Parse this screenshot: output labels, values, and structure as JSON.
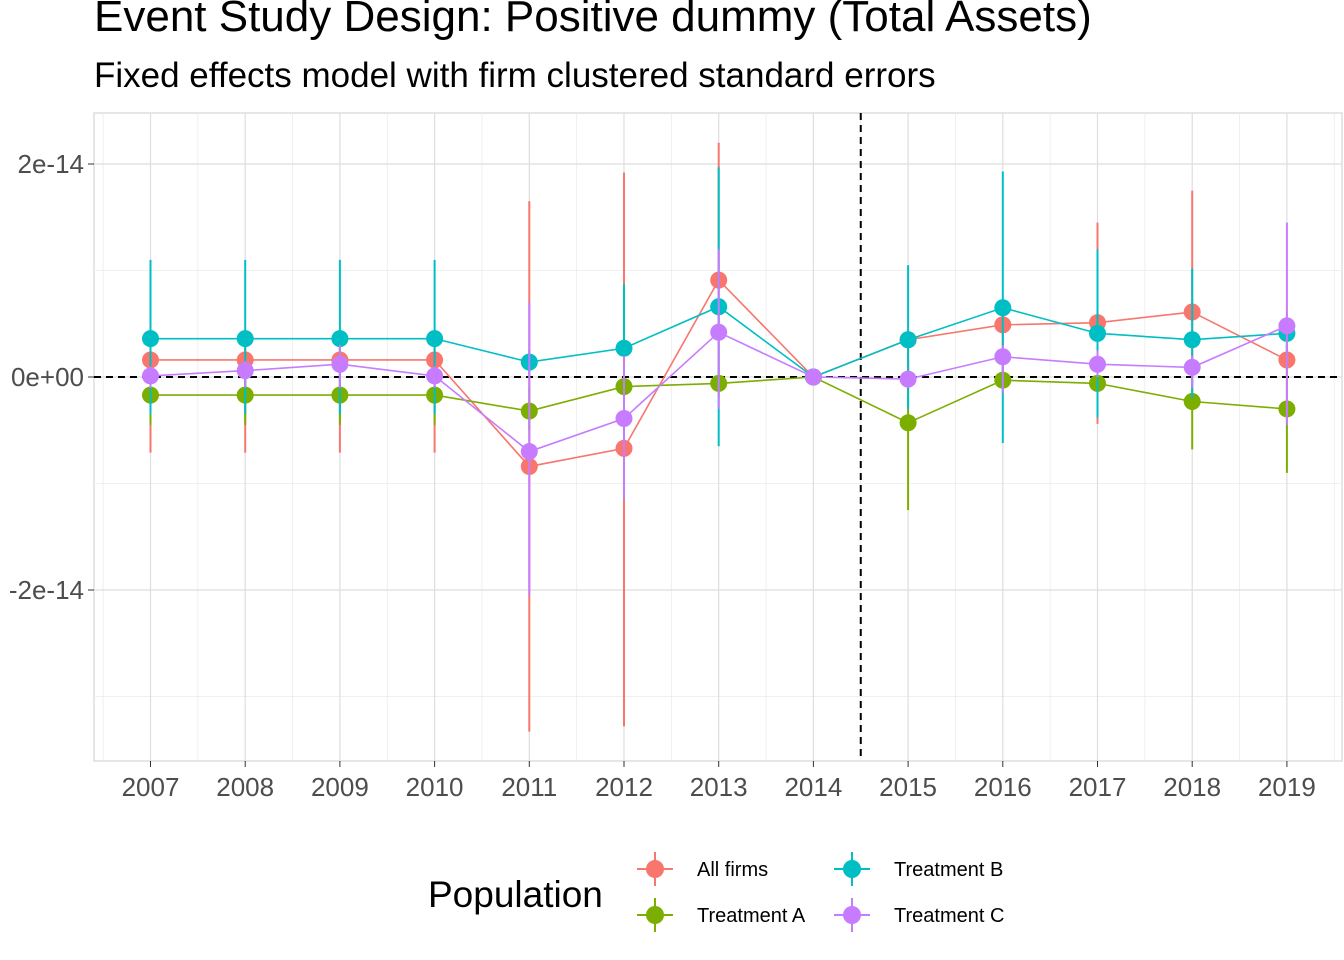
{
  "title": "Event Study Design: Positive dummy (Total Assets)",
  "subtitle": "Fixed effects model with firm clustered standard errors",
  "chart_data": {
    "type": "line",
    "title": "Event Study Design: Positive dummy (Total Assets)",
    "subtitle": "Fixed effects model with firm clustered standard errors",
    "x": [
      2007,
      2008,
      2009,
      2010,
      2011,
      2012,
      2013,
      2014,
      2015,
      2016,
      2017,
      2018,
      2019
    ],
    "x_tick_labels": [
      "2007",
      "2008",
      "2009",
      "2010",
      "2011",
      "2012",
      "2013",
      "2014",
      "2015",
      "2016",
      "2017",
      "2018",
      "2019"
    ],
    "ylim": [
      -3.6e-14,
      2.45e-14
    ],
    "y_ticks": [
      2e-14,
      0,
      -2e-14
    ],
    "y_tick_labels": [
      "2e-14",
      "0e+00",
      "-2e-14"
    ],
    "reference_lines": {
      "horizontal_y": 0,
      "vertical_x": 2014.5,
      "style": "dashed"
    },
    "grid": true,
    "legend": {
      "title": "Population",
      "position": "bottom"
    },
    "series": [
      {
        "name": "All firms",
        "color": "#F8766D",
        "values": [
          1.6e-15,
          1.6e-15,
          1.6e-15,
          1.6e-15,
          -8.4e-15,
          -6.7e-15,
          9.1e-15,
          0,
          3.5e-15,
          4.9e-15,
          5.1e-15,
          6.1e-15,
          1.6e-15
        ],
        "lower": [
          -7.1e-15,
          -7.1e-15,
          -7.1e-15,
          -7.1e-15,
          -3.33e-14,
          -3.28e-14,
          0,
          0,
          0,
          0,
          -4.4e-15,
          0,
          0
        ],
        "upper": [
          3.5e-15,
          3.5e-15,
          3.5e-15,
          3.5e-15,
          1.65e-14,
          1.92e-14,
          2.2e-14,
          0,
          4e-15,
          6e-15,
          1.45e-14,
          1.75e-14,
          3e-15
        ]
      },
      {
        "name": "Treatment A",
        "color": "#7CAE00",
        "values": [
          -1.7e-15,
          -1.7e-15,
          -1.7e-15,
          -1.7e-15,
          -3.2e-15,
          -9e-16,
          -6e-16,
          0,
          -4.3e-15,
          -3e-16,
          -6e-16,
          -2.3e-15,
          -3e-15
        ],
        "lower": [
          -4.5e-15,
          -4.5e-15,
          -4.5e-15,
          -4.5e-15,
          -5e-15,
          -3e-15,
          -2e-15,
          0,
          -1.25e-14,
          -1.5e-15,
          -1.5e-15,
          -6.8e-15,
          -9e-15
        ],
        "upper": [
          0.0,
          0.0,
          0.0,
          0.0,
          -1e-15,
          1e-15,
          1e-15,
          0,
          1.5e-15,
          1e-15,
          5e-16,
          2e-15,
          3e-15
        ]
      },
      {
        "name": "Treatment B",
        "color": "#00BFC4",
        "values": [
          3.6e-15,
          3.6e-15,
          3.6e-15,
          3.6e-15,
          1.4e-15,
          2.7e-15,
          6.6e-15,
          0,
          3.5e-15,
          6.5e-15,
          4.1e-15,
          3.5e-15,
          4.1e-15
        ],
        "lower": [
          -3.5e-15,
          -3.5e-15,
          -3.5e-15,
          -3.5e-15,
          0.0,
          0.0,
          -6.5e-15,
          0,
          -3e-15,
          -6.2e-15,
          -3.8e-15,
          -2e-15,
          2e-15
        ],
        "upper": [
          1.1e-14,
          1.1e-14,
          1.1e-14,
          1.1e-14,
          2.5e-15,
          8.7e-15,
          1.97e-14,
          0,
          1.05e-14,
          1.93e-14,
          1.2e-14,
          1.02e-14,
          6e-15
        ]
      },
      {
        "name": "Treatment C",
        "color": "#C77CFF",
        "values": [
          1e-16,
          6e-16,
          1.2e-15,
          1e-16,
          -7e-15,
          -3.9e-15,
          4.2e-15,
          0,
          -2e-16,
          1.9e-15,
          1.2e-15,
          9e-16,
          4.8e-15
        ],
        "lower": [
          -1e-15,
          -1e-15,
          -1e-15,
          -1e-15,
          -2.05e-14,
          -1.15e-14,
          -3e-15,
          0,
          -1e-15,
          -1.5e-15,
          0.0,
          -1e-15,
          -4.5e-15
        ],
        "upper": [
          1e-15,
          1.5e-15,
          3e-15,
          1e-15,
          7e-15,
          2e-15,
          1.2e-14,
          0,
          5e-16,
          3e-15,
          2.5e-15,
          2e-15,
          1.45e-14
        ]
      }
    ]
  }
}
